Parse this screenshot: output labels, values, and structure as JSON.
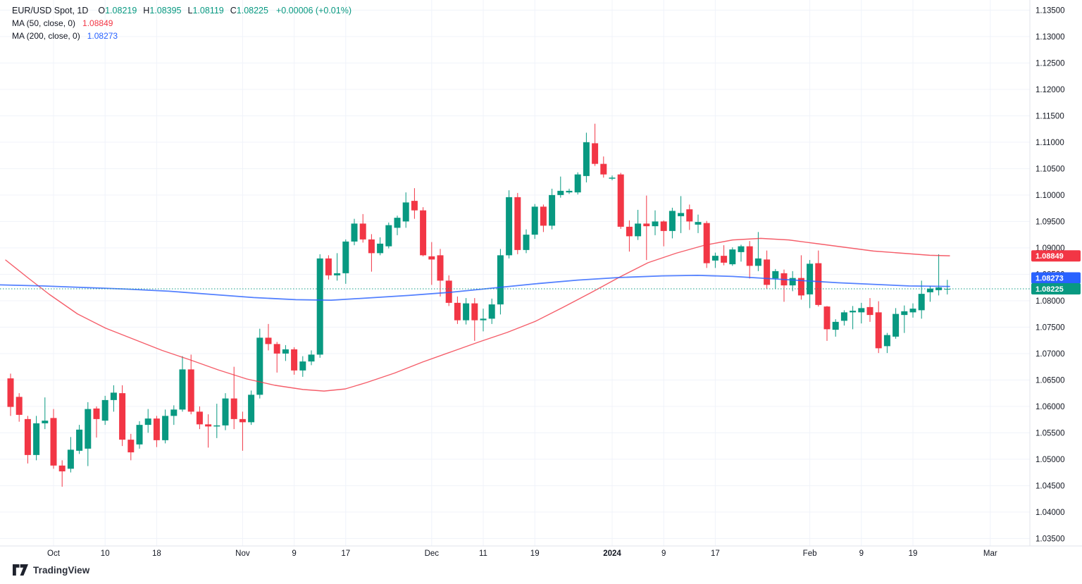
{
  "legend": {
    "symbol_title": "EUR/USD Spot, 1D",
    "ohlc": [
      {
        "key": "O",
        "value": "1.08219"
      },
      {
        "key": "H",
        "value": "1.08395"
      },
      {
        "key": "L",
        "value": "1.08119"
      },
      {
        "key": "C",
        "value": "1.08225"
      }
    ],
    "change_text": "+0.00006 (+0.01%)",
    "indicators": [
      {
        "label": "MA (50, close, 0)",
        "value": "1.08849",
        "color": "#f23645"
      },
      {
        "label": "MA (200, close, 0)",
        "value": "1.08273",
        "color": "#2962ff"
      }
    ]
  },
  "colors": {
    "background": "#ffffff",
    "grid": "#f0f3fa",
    "axis_border": "#e0e3eb",
    "axis_text": "#131722",
    "up": "#089981",
    "down": "#f23645",
    "ma50": "#f23645",
    "ma200": "#2962ff",
    "last_price_line": "#089981",
    "badge_text": "#ffffff"
  },
  "price_axis": {
    "labels": [
      "1.13500",
      "1.13000",
      "1.12500",
      "1.12000",
      "1.11500",
      "1.11000",
      "1.10500",
      "1.10000",
      "1.09500",
      "1.09000",
      "1.08500",
      "1.08000",
      "1.07500",
      "1.07000",
      "1.06500",
      "1.06000",
      "1.05500",
      "1.05000",
      "1.04500",
      "1.04000",
      "1.03500"
    ],
    "badges": [
      {
        "text": "1.08849",
        "price": 1.08849,
        "bg": "#f23645",
        "name": "ma50-price-badge"
      },
      {
        "text": "1.08273",
        "price": 1.08273,
        "bg": "#2962ff",
        "name": "ma200-price-badge"
      },
      {
        "text": "1.08225",
        "price": 1.08225,
        "bg": "#089981",
        "name": "last-price-badge"
      }
    ]
  },
  "time_axis": {
    "labels": [
      {
        "text": "Oct",
        "i": 5,
        "year": false
      },
      {
        "text": "10",
        "i": 11,
        "year": false
      },
      {
        "text": "18",
        "i": 17,
        "year": false
      },
      {
        "text": "Nov",
        "i": 27,
        "year": false
      },
      {
        "text": "9",
        "i": 33,
        "year": false
      },
      {
        "text": "17",
        "i": 39,
        "year": false
      },
      {
        "text": "Dec",
        "i": 49,
        "year": false
      },
      {
        "text": "11",
        "i": 55,
        "year": false
      },
      {
        "text": "19",
        "i": 61,
        "year": false
      },
      {
        "text": "2024",
        "i": 70,
        "year": true
      },
      {
        "text": "9",
        "i": 76,
        "year": false
      },
      {
        "text": "17",
        "i": 82,
        "year": false
      },
      {
        "text": "Feb",
        "i": 93,
        "year": false
      },
      {
        "text": "9",
        "i": 99,
        "year": false
      },
      {
        "text": "19",
        "i": 105,
        "year": false
      },
      {
        "text": "Mar",
        "i": 114,
        "year": false
      }
    ]
  },
  "attribution": {
    "label": "TradingView"
  },
  "chart_data": {
    "type": "candlestick",
    "title": "EUR/USD Spot",
    "timeframe": "1D",
    "ylim": [
      1.033,
      1.136
    ],
    "grid_step": 0.005,
    "last_price": 1.08225,
    "legend_note": "grid on; price scale right; MA50 red; MA200 blue; dotted last-price line",
    "candles_columns": [
      "date",
      "open",
      "high",
      "low",
      "close"
    ],
    "candles": [
      [
        "2023-09-25",
        1.0653,
        1.0662,
        1.0582,
        1.0599
      ],
      [
        "2023-09-26",
        1.0618,
        1.0625,
        1.0571,
        1.0584
      ],
      [
        "2023-09-27",
        1.0576,
        1.0582,
        1.0492,
        1.0508
      ],
      [
        "2023-09-28",
        1.0508,
        1.0582,
        1.0498,
        1.0568
      ],
      [
        "2023-09-29",
        1.0568,
        1.0617,
        1.0557,
        1.0573
      ],
      [
        "2023-10-02",
        1.0578,
        1.0595,
        1.0482,
        1.0488
      ],
      [
        "2023-10-03",
        1.0488,
        1.0498,
        1.0448,
        1.0477
      ],
      [
        "2023-10-04",
        1.0482,
        1.0542,
        1.0475,
        1.0518
      ],
      [
        "2023-10-05",
        1.0516,
        1.0565,
        1.051,
        1.0556
      ],
      [
        "2023-10-06",
        1.052,
        1.0608,
        1.0487,
        1.0595
      ],
      [
        "2023-10-09",
        1.0596,
        1.06,
        1.0541,
        1.0576
      ],
      [
        "2023-10-10",
        1.0573,
        1.062,
        1.0565,
        1.0612
      ],
      [
        "2023-10-11",
        1.0612,
        1.064,
        1.059,
        1.0626
      ],
      [
        "2023-10-12",
        1.0625,
        1.064,
        1.0525,
        1.0537
      ],
      [
        "2023-10-13",
        1.0537,
        1.0548,
        1.0498,
        1.0513
      ],
      [
        "2023-10-16",
        1.0528,
        1.0572,
        1.052,
        1.0565
      ],
      [
        "2023-10-17",
        1.0565,
        1.0595,
        1.055,
        1.0577
      ],
      [
        "2023-10-18",
        1.0577,
        1.0582,
        1.0523,
        1.0536
      ],
      [
        "2023-10-19",
        1.0536,
        1.0594,
        1.053,
        1.0582
      ],
      [
        "2023-10-20",
        1.0582,
        1.0602,
        1.0565,
        1.0594
      ],
      [
        "2023-10-23",
        1.0594,
        1.0695,
        1.059,
        1.067
      ],
      [
        "2023-10-24",
        1.067,
        1.0698,
        1.0585,
        1.059
      ],
      [
        "2023-10-25",
        1.059,
        1.06,
        1.0557,
        1.0566
      ],
      [
        "2023-10-26",
        1.0566,
        1.0585,
        1.0522,
        1.0562
      ],
      [
        "2023-10-27",
        1.0562,
        1.0605,
        1.054,
        1.0564
      ],
      [
        "2023-10-30",
        1.0564,
        1.0625,
        1.0555,
        1.0615
      ],
      [
        "2023-10-31",
        1.0615,
        1.0675,
        1.0557,
        1.0576
      ],
      [
        "2023-11-01",
        1.0576,
        1.059,
        1.0516,
        1.057
      ],
      [
        "2023-11-02",
        1.057,
        1.063,
        1.0565,
        1.0622
      ],
      [
        "2023-11-03",
        1.0622,
        1.0747,
        1.0615,
        1.073
      ],
      [
        "2023-11-06",
        1.073,
        1.0756,
        1.0706,
        1.0718
      ],
      [
        "2023-11-07",
        1.0718,
        1.0722,
        1.0664,
        1.07
      ],
      [
        "2023-11-08",
        1.07,
        1.0716,
        1.0686,
        1.0708
      ],
      [
        "2023-11-09",
        1.0708,
        1.0712,
        1.066,
        1.0668
      ],
      [
        "2023-11-10",
        1.0668,
        1.0695,
        1.0656,
        1.0685
      ],
      [
        "2023-11-13",
        1.0685,
        1.0706,
        1.0678,
        1.0698
      ],
      [
        "2023-11-14",
        1.0698,
        1.0888,
        1.0692,
        1.088
      ],
      [
        "2023-11-15",
        1.088,
        1.0886,
        1.084,
        1.0848
      ],
      [
        "2023-11-16",
        1.0848,
        1.089,
        1.0838,
        1.0852
      ],
      [
        "2023-11-17",
        1.0852,
        1.0916,
        1.0832,
        1.0912
      ],
      [
        "2023-11-20",
        1.0912,
        1.0955,
        1.0905,
        1.0946
      ],
      [
        "2023-11-21",
        1.0946,
        1.0964,
        1.091,
        1.0916
      ],
      [
        "2023-11-22",
        1.0916,
        1.0926,
        1.0855,
        1.089
      ],
      [
        "2023-11-23",
        1.089,
        1.092,
        1.0886,
        1.0908
      ],
      [
        "2023-11-24",
        1.0903,
        1.0948,
        1.0899,
        1.0943
      ],
      [
        "2023-11-27",
        1.0938,
        1.0961,
        1.0924,
        1.0957
      ],
      [
        "2023-11-28",
        1.095,
        1.1005,
        1.0938,
        1.0986
      ],
      [
        "2023-11-29",
        1.0989,
        1.1013,
        1.0955,
        1.0971
      ],
      [
        "2023-11-30",
        1.0971,
        1.0977,
        1.0884,
        1.0886
      ],
      [
        "2023-12-01",
        1.0884,
        1.0911,
        1.083,
        1.0878
      ],
      [
        "2023-12-04",
        1.0886,
        1.0898,
        1.0808,
        1.0838
      ],
      [
        "2023-12-05",
        1.0838,
        1.0848,
        1.079,
        1.0796
      ],
      [
        "2023-12-06",
        1.0796,
        1.0808,
        1.0756,
        1.0763
      ],
      [
        "2023-12-07",
        1.0763,
        1.0805,
        1.0755,
        1.0795
      ],
      [
        "2023-12-08",
        1.0795,
        1.0805,
        1.0724,
        1.0763
      ],
      [
        "2023-12-11",
        1.0763,
        1.0785,
        1.0742,
        1.0766
      ],
      [
        "2023-12-12",
        1.0766,
        1.0804,
        1.0756,
        1.0793
      ],
      [
        "2023-12-13",
        1.0793,
        1.0898,
        1.0774,
        1.0886
      ],
      [
        "2023-12-14",
        1.0886,
        1.1009,
        1.088,
        1.0996
      ],
      [
        "2023-12-15",
        1.0996,
        1.1004,
        1.0888,
        1.0896
      ],
      [
        "2023-12-18",
        1.0896,
        1.0935,
        1.089,
        1.0925
      ],
      [
        "2023-12-19",
        1.0925,
        1.0983,
        1.0917,
        1.0978
      ],
      [
        "2023-12-20",
        1.0978,
        1.0982,
        1.093,
        1.0942
      ],
      [
        "2023-12-21",
        1.0942,
        1.1012,
        1.0935,
        1.1
      ],
      [
        "2023-12-22",
        1.1,
        1.1035,
        1.0995,
        1.1008
      ],
      [
        "2023-12-25",
        1.1005,
        1.1012,
        1.1002,
        1.1008
      ],
      [
        "2023-12-26",
        1.1005,
        1.1043,
        1.1001,
        1.1039
      ],
      [
        "2023-12-27",
        1.1036,
        1.1118,
        1.1024,
        1.11
      ],
      [
        "2023-12-28",
        1.1098,
        1.1135,
        1.1055,
        1.1059
      ],
      [
        "2023-12-29",
        1.1059,
        1.1073,
        1.1033,
        1.1039
      ],
      [
        "2024-01-01",
        1.1031,
        1.1037,
        1.1028,
        1.1033
      ],
      [
        "2024-01-02",
        1.1039,
        1.1042,
        1.0936,
        1.094
      ],
      [
        "2024-01-03",
        1.094,
        1.0952,
        1.0893,
        1.0922
      ],
      [
        "2024-01-04",
        1.0922,
        1.0972,
        1.0915,
        1.0946
      ],
      [
        "2024-01-05",
        1.0946,
        1.0999,
        1.0877,
        1.0941
      ],
      [
        "2024-01-08",
        1.0941,
        1.0971,
        1.0924,
        1.095
      ],
      [
        "2024-01-09",
        1.095,
        1.0952,
        1.0903,
        1.0932
      ],
      [
        "2024-01-10",
        1.0932,
        1.0976,
        1.0918,
        1.097
      ],
      [
        "2024-01-11",
        1.096,
        1.0998,
        1.0928,
        1.0966
      ],
      [
        "2024-01-12",
        1.0973,
        1.0982,
        1.0934,
        1.095
      ],
      [
        "2024-01-15",
        1.0944,
        1.0963,
        1.0928,
        1.0949
      ],
      [
        "2024-01-16",
        1.0947,
        1.0951,
        1.0862,
        1.0871
      ],
      [
        "2024-01-17",
        1.0876,
        1.0891,
        1.0862,
        1.0885
      ],
      [
        "2024-01-18",
        1.0885,
        1.0905,
        1.0867,
        1.0872
      ],
      [
        "2024-01-19",
        1.0869,
        1.0901,
        1.0866,
        1.0897
      ],
      [
        "2024-01-22",
        1.0892,
        1.0906,
        1.0874,
        1.0903
      ],
      [
        "2024-01-23",
        1.0903,
        1.0913,
        1.0842,
        1.0866
      ],
      [
        "2024-01-24",
        1.0866,
        1.093,
        1.0856,
        1.088
      ],
      [
        "2024-01-25",
        1.0878,
        1.0895,
        1.0823,
        1.083
      ],
      [
        "2024-01-26",
        1.0842,
        1.086,
        1.0822,
        1.0856
      ],
      [
        "2024-01-29",
        1.0852,
        1.0859,
        1.0798,
        1.0829
      ],
      [
        "2024-01-30",
        1.0829,
        1.0856,
        1.0818,
        1.0843
      ],
      [
        "2024-01-31",
        1.0843,
        1.0886,
        1.0802,
        1.081
      ],
      [
        "2024-02-01",
        1.0812,
        1.0877,
        1.0786,
        1.087
      ],
      [
        "2024-02-02",
        1.0871,
        1.0895,
        1.0789,
        1.0792
      ],
      [
        "2024-02-05",
        1.0789,
        1.079,
        1.0724,
        1.0746
      ],
      [
        "2024-02-06",
        1.0745,
        1.0765,
        1.0732,
        1.076
      ],
      [
        "2024-02-07",
        1.0762,
        1.0782,
        1.0753,
        1.0778
      ],
      [
        "2024-02-08",
        1.0778,
        1.079,
        1.0746,
        1.0781
      ],
      [
        "2024-02-09",
        1.0778,
        1.0796,
        1.0757,
        1.0786
      ],
      [
        "2024-02-12",
        1.0788,
        1.0805,
        1.076,
        1.0773
      ],
      [
        "2024-02-13",
        1.0778,
        1.0799,
        1.0701,
        1.071
      ],
      [
        "2024-02-14",
        1.0714,
        1.0739,
        1.0701,
        1.0735
      ],
      [
        "2024-02-15",
        1.0732,
        1.0786,
        1.0728,
        1.0775
      ],
      [
        "2024-02-16",
        1.0773,
        1.0791,
        1.0739,
        1.078
      ],
      [
        "2024-02-19",
        1.0778,
        1.0795,
        1.0768,
        1.0785
      ],
      [
        "2024-02-20",
        1.0782,
        1.0838,
        1.0766,
        1.0813
      ],
      [
        "2024-02-21",
        1.0816,
        1.0828,
        1.0798,
        1.0823
      ],
      [
        "2024-02-22",
        1.082,
        1.0888,
        1.081,
        1.0825
      ],
      [
        "2024-02-23",
        1.08219,
        1.08395,
        1.08119,
        1.08225
      ]
    ],
    "series": [
      {
        "name": "MA 50",
        "color": "#f23645",
        "points": [
          [
            8,
            1.0877
          ],
          [
            40,
            1.0843
          ],
          [
            70,
            1.0812
          ],
          [
            110,
            1.0775
          ],
          [
            150,
            1.0748
          ],
          [
            190,
            1.0727
          ],
          [
            230,
            1.0706
          ],
          [
            270,
            1.0688
          ],
          [
            310,
            1.0669
          ],
          [
            350,
            1.0652
          ],
          [
            390,
            1.064
          ],
          [
            430,
            1.0632
          ],
          [
            460,
            1.0629
          ],
          [
            490,
            1.0633
          ],
          [
            520,
            1.0645
          ],
          [
            560,
            1.0663
          ],
          [
            600,
            1.0684
          ],
          [
            640,
            1.0703
          ],
          [
            680,
            1.0722
          ],
          [
            720,
            1.074
          ],
          [
            760,
            1.0761
          ],
          [
            800,
            1.0788
          ],
          [
            840,
            1.0816
          ],
          [
            880,
            1.0845
          ],
          [
            920,
            1.0872
          ],
          [
            960,
            1.089
          ],
          [
            1000,
            1.0905
          ],
          [
            1040,
            1.0915
          ],
          [
            1080,
            1.0918
          ],
          [
            1120,
            1.0915
          ],
          [
            1160,
            1.0908
          ],
          [
            1200,
            1.0901
          ],
          [
            1240,
            1.0894
          ],
          [
            1280,
            1.089
          ],
          [
            1320,
            1.0886
          ],
          [
            1348,
            1.0885
          ]
        ]
      },
      {
        "name": "MA 200",
        "color": "#2962ff",
        "points": [
          [
            0,
            1.083
          ],
          [
            60,
            1.0828
          ],
          [
            120,
            1.0825
          ],
          [
            180,
            1.0822
          ],
          [
            240,
            1.0818
          ],
          [
            300,
            1.0812
          ],
          [
            360,
            1.0806
          ],
          [
            420,
            1.0802
          ],
          [
            470,
            1.0801
          ],
          [
            520,
            1.0805
          ],
          [
            580,
            1.081
          ],
          [
            640,
            1.0816
          ],
          [
            700,
            1.0824
          ],
          [
            760,
            1.0832
          ],
          [
            820,
            1.0839
          ],
          [
            880,
            1.0844
          ],
          [
            940,
            1.0847
          ],
          [
            990,
            1.0848
          ],
          [
            1040,
            1.0846
          ],
          [
            1090,
            1.0842
          ],
          [
            1140,
            1.0838
          ],
          [
            1190,
            1.0834
          ],
          [
            1240,
            1.0831
          ],
          [
            1290,
            1.0828
          ],
          [
            1348,
            1.0827
          ]
        ]
      }
    ]
  }
}
